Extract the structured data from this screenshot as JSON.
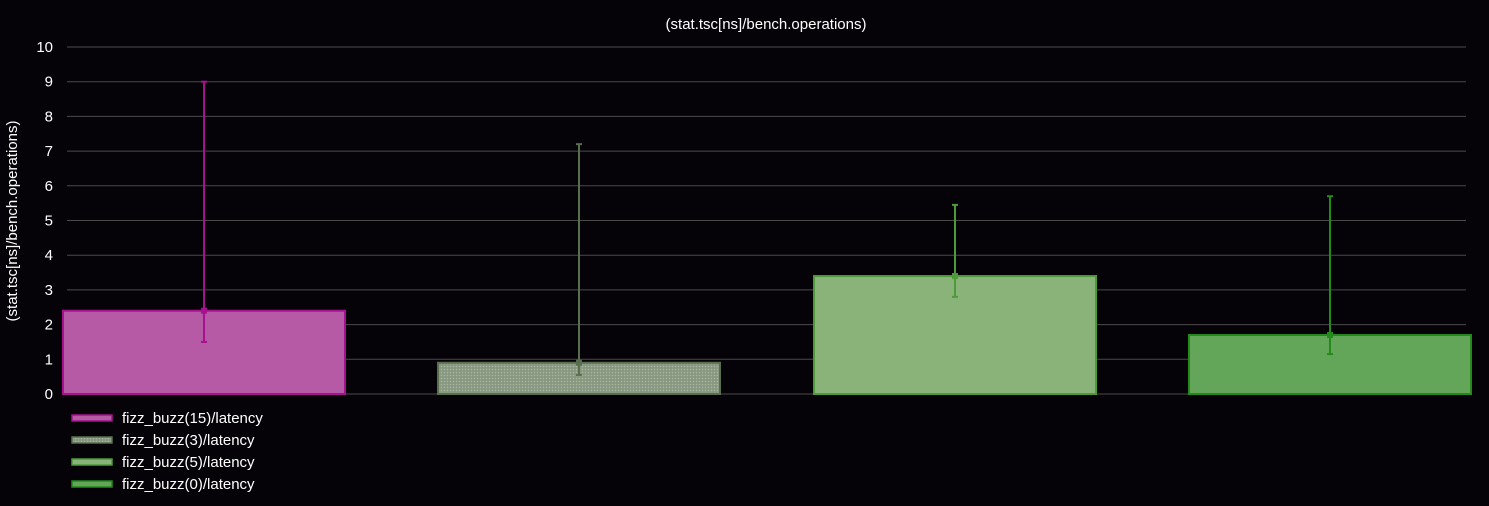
{
  "chart_data": {
    "type": "bar",
    "title": "(stat.tsc[ns]/bench.operations)",
    "xlabel": "",
    "ylabel": "(stat.tsc[ns]/bench.operations)",
    "ylim": [
      0,
      10
    ],
    "yticks": [
      "0",
      "1",
      "2",
      "3",
      "4",
      "5",
      "6",
      "7",
      "8",
      "9",
      "10"
    ],
    "grid": true,
    "legend_position": "bottom-left",
    "series": [
      {
        "name": "fizz_buzz(15)/latency",
        "value": 2.4,
        "err_low": 1.5,
        "err_high": 9.0,
        "fill": "#b65aa6",
        "stroke": "#a6118f",
        "pattern": "solid"
      },
      {
        "name": "fizz_buzz(3)/latency",
        "value": 0.9,
        "err_low": 0.55,
        "err_high": 7.2,
        "fill": "#8e9e86",
        "stroke": "#586e4f",
        "pattern": "dotted"
      },
      {
        "name": "fizz_buzz(5)/latency",
        "value": 3.4,
        "err_low": 2.8,
        "err_high": 5.45,
        "fill": "#8ab37a",
        "stroke": "#4d9a3a",
        "pattern": "solid"
      },
      {
        "name": "fizz_buzz(0)/latency",
        "value": 1.7,
        "err_low": 1.15,
        "err_high": 5.7,
        "fill": "#63a659",
        "stroke": "#238a1b",
        "pattern": "solid"
      }
    ]
  }
}
